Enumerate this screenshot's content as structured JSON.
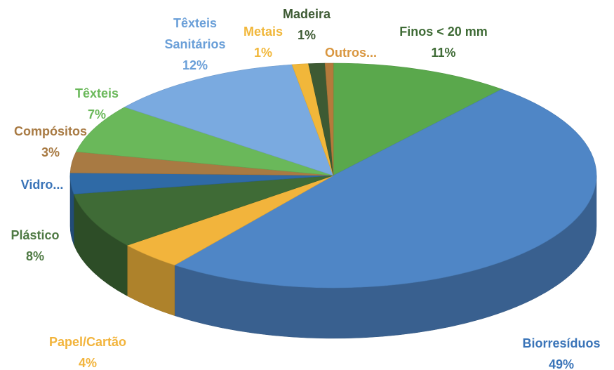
{
  "chart_data": {
    "type": "pie3d",
    "categories": [
      "Finos < 20 mm",
      "Biorresíduos",
      "Papel/Cartão",
      "Plástico",
      "Vidro...",
      "Compósitos",
      "Têxteis",
      "Têxteis Sanitários",
      "Metais",
      "Madeira",
      "Outros..."
    ],
    "values": [
      11,
      49,
      4,
      8,
      3,
      3,
      7,
      12,
      1,
      1,
      0.5
    ],
    "value_labels": [
      "11%",
      "49%",
      "4%",
      "8%",
      null,
      "3%",
      "7%",
      "12%",
      "1%",
      "1%",
      null
    ],
    "colors": [
      "#5aa84c",
      "#4f86c6",
      "#f2b43c",
      "#3f6b36",
      "#2f6aa6",
      "#a87a43",
      "#6ab85a",
      "#7aaae0",
      "#f1b73a",
      "#3d5a33",
      "#b57a3b"
    ],
    "label_colors": [
      "#3f6b36",
      "#3a74b8",
      "#f2b43c",
      "#4f7a44",
      "#3a74b8",
      "#a87a43",
      "#6ab85a",
      "#6a9fd8",
      "#f1b73a",
      "#3d5a33",
      "#d9963f"
    ]
  }
}
